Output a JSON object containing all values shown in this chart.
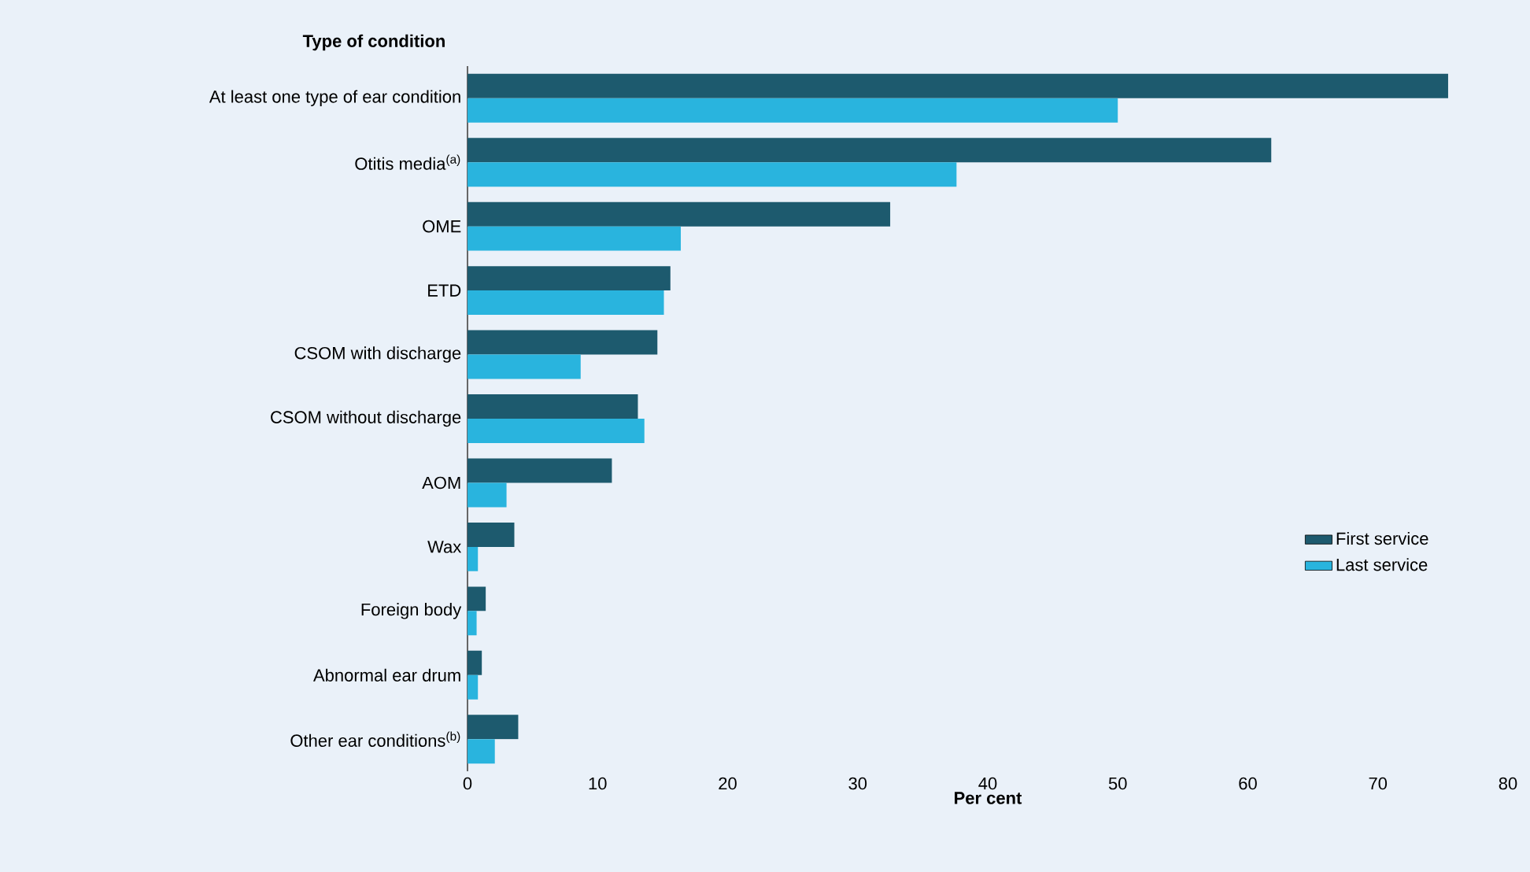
{
  "chart_data": {
    "type": "bar",
    "orientation": "horizontal",
    "ylabel": "Type of condition",
    "xlabel": "Per cent",
    "categories": [
      "At least one type of ear condition",
      "Otitis media$^{(a)}$",
      "OME",
      "ETD",
      "CSOM with discharge",
      "CSOM without discharge",
      "AOM",
      "Wax",
      "Foreign body",
      "Abnormal ear drum",
      "Other ear conditions$^{(b)}$"
    ],
    "series": [
      {
        "name": "First service",
        "color": "#1d5a6e",
        "values": [
          75.4,
          61.8,
          32.5,
          15.6,
          14.6,
          13.1,
          11.1,
          3.6,
          1.4,
          1.1,
          3.9
        ]
      },
      {
        "name": "Last service",
        "color": "#29b4de",
        "values": [
          50.0,
          37.6,
          16.4,
          15.1,
          8.7,
          13.6,
          3.0,
          0.8,
          0.7,
          0.8,
          2.1
        ]
      }
    ],
    "xlim": [
      0,
      80
    ],
    "xticks": [
      0,
      10,
      20,
      30,
      40,
      50,
      60,
      70,
      80
    ],
    "legend": "right",
    "grid": false
  }
}
